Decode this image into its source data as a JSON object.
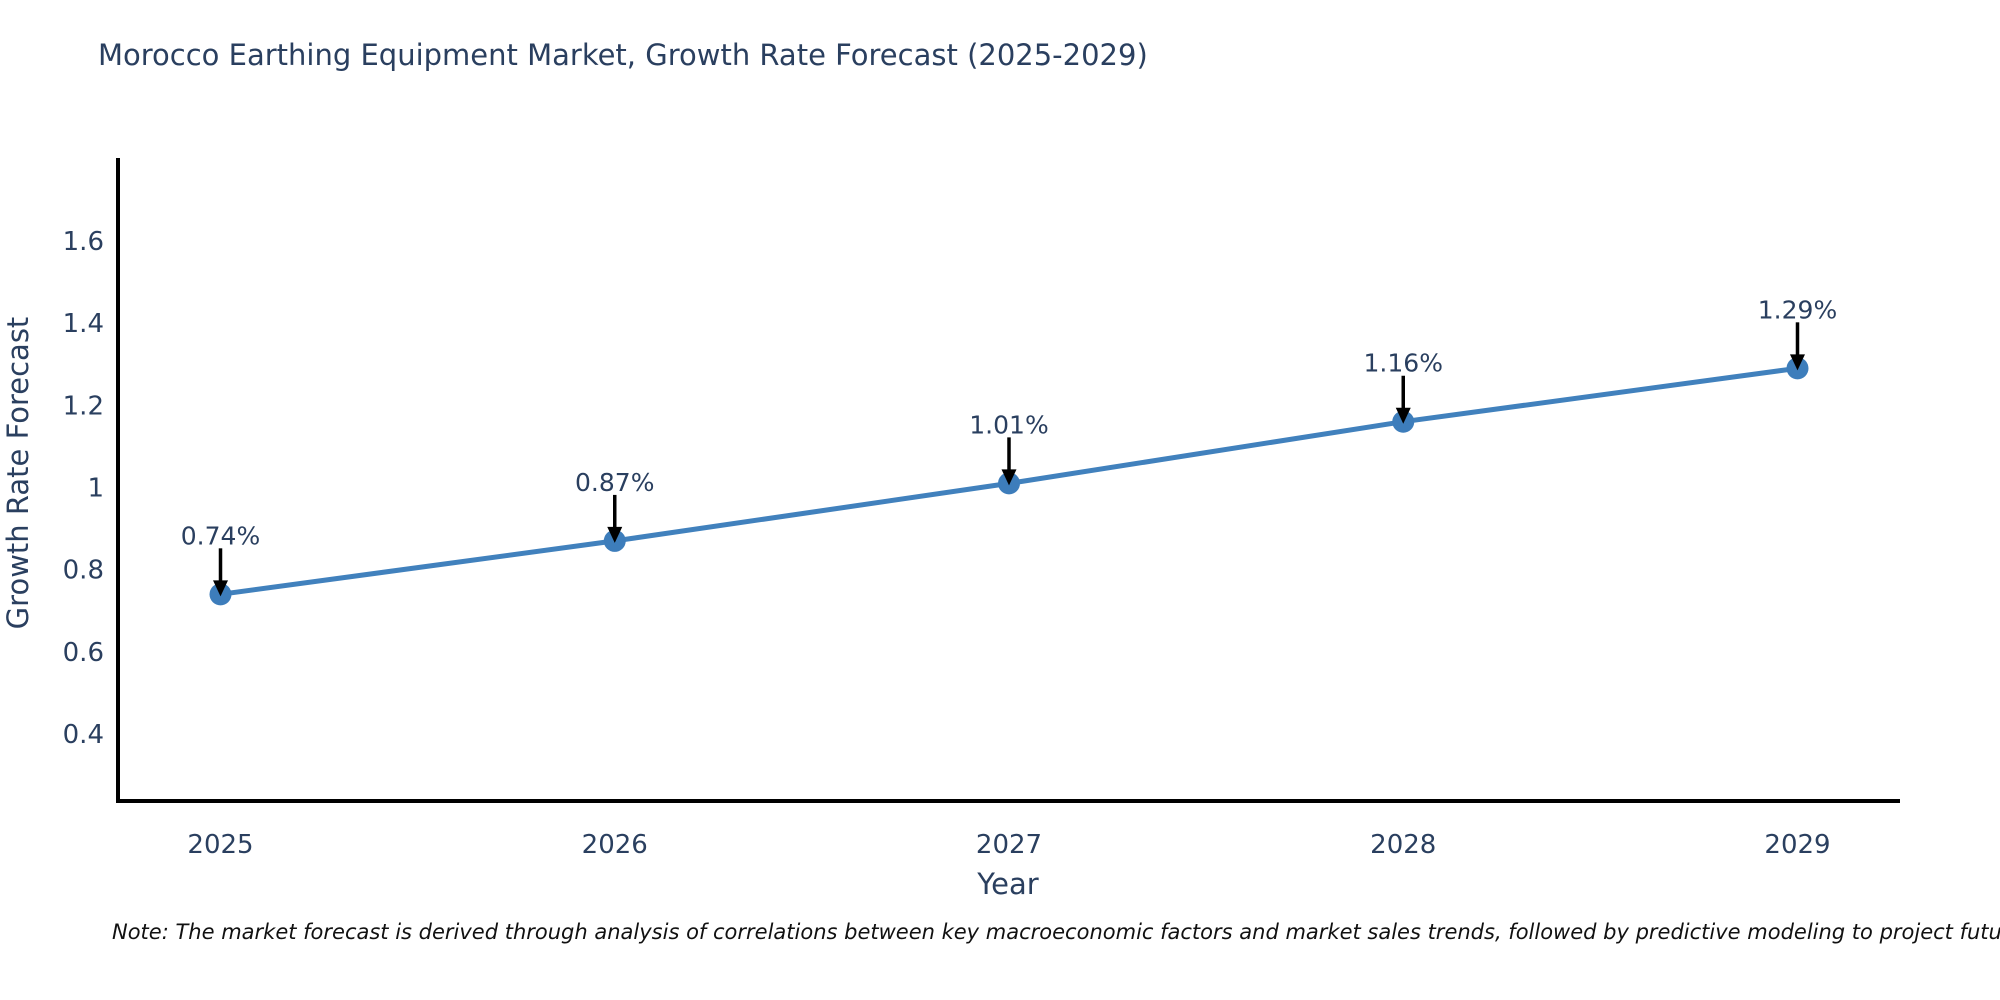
{
  "chart": {
    "title": "Morocco Earthing Equipment Market, Growth Rate Forecast (2025-2029)",
    "xlabel": "Year",
    "ylabel": "Growth Rate Forecast",
    "note": "Note: The market forecast is derived through analysis of correlations between key macroeconomic factors and market sales trends, followed by predictive modeling to project future sales",
    "colors": {
      "line": "#4181bd",
      "marker": "#3d7dbb",
      "axis": "#000000",
      "text": "#2a3f5f",
      "annotation_arrow": "#000000"
    }
  },
  "chart_data": {
    "type": "line",
    "title": "Morocco Earthing Equipment Market, Growth Rate Forecast (2025-2029)",
    "xlabel": "Year",
    "ylabel": "Growth Rate Forecast",
    "x": [
      2025,
      2026,
      2027,
      2028,
      2029
    ],
    "values": [
      0.74,
      0.87,
      1.01,
      1.16,
      1.29
    ],
    "point_labels": [
      "0.74%",
      "0.87%",
      "1.01%",
      "1.16%",
      "1.29%"
    ],
    "xticks": [
      2025,
      2026,
      2027,
      2028,
      2029
    ],
    "xtick_labels": [
      "2025",
      "2026",
      "2027",
      "2028",
      "2029"
    ],
    "yticks": [
      0.4,
      0.6,
      0.8,
      1,
      1.2,
      1.4,
      1.6
    ],
    "ytick_labels": [
      "0.4",
      "0.6",
      "0.8",
      "1",
      "1.2",
      "1.4",
      "1.6"
    ],
    "xlim": [
      2024.74,
      2029.26
    ],
    "ylim": [
      0.237,
      1.797
    ],
    "grid": false,
    "legend": null,
    "annotation_style": "value label above each point with downward black arrow to marker"
  }
}
